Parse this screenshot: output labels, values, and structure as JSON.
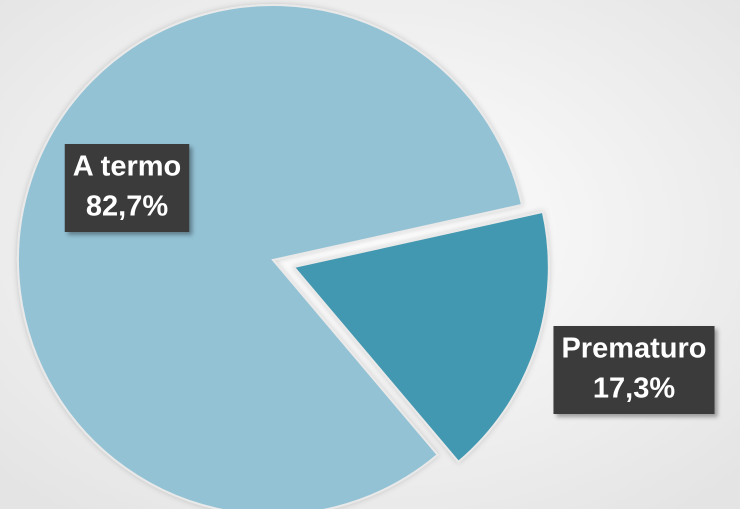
{
  "chart_data": {
    "type": "pie",
    "categories": [
      "A termo",
      "Prematuro"
    ],
    "values": [
      82.7,
      17.3
    ],
    "value_labels": [
      "82,7%",
      "17,3%"
    ],
    "colors": [
      "#93c2d5",
      "#4398b0"
    ],
    "explode": [
      false,
      true
    ]
  }
}
